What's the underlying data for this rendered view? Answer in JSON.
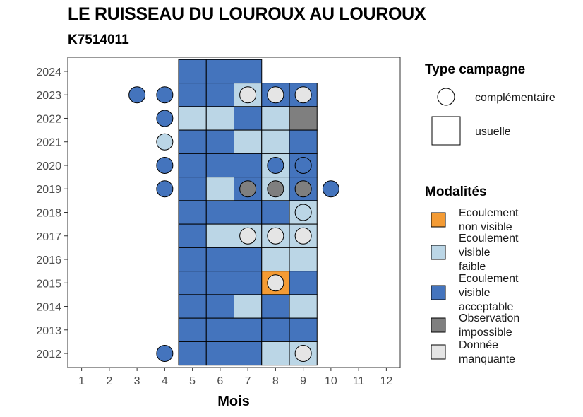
{
  "title": "LE RUISSEAU DU LOUROUX AU LOUROUX",
  "subtitle": "K7514011",
  "chart_data": {
    "type": "heatmap",
    "xlabel": "Mois",
    "ylabel": "",
    "x_ticks": [
      "1",
      "2",
      "3",
      "4",
      "5",
      "6",
      "7",
      "8",
      "9",
      "10",
      "11",
      "12"
    ],
    "y_ticks": [
      "2012",
      "2013",
      "2014",
      "2015",
      "2016",
      "2017",
      "2018",
      "2019",
      "2020",
      "2021",
      "2022",
      "2023",
      "2024"
    ],
    "xlim": [
      0.5,
      12.5
    ],
    "ylim": [
      2011.4,
      2024.6
    ],
    "grid": false,
    "legend_position": "right",
    "modalites": [
      {
        "key": "env",
        "label_lines": [
          "Ecoulement",
          "non visible"
        ],
        "color": "#F49B34"
      },
      {
        "key": "evf",
        "label_lines": [
          "Ecoulement",
          "visible",
          "faible"
        ],
        "color": "#BBD6E6"
      },
      {
        "key": "eva",
        "label_lines": [
          "Ecoulement",
          "visible",
          "acceptable"
        ],
        "color": "#4474BD"
      },
      {
        "key": "obs",
        "label_lines": [
          "Observation",
          "impossible"
        ],
        "color": "#7F7F7F"
      },
      {
        "key": "nd",
        "label_lines": [
          "Donnée",
          "manquante"
        ],
        "color": "#E5E5E5"
      }
    ],
    "type_campagne": {
      "title": "Type campagne",
      "entries": [
        {
          "key": "complementaire",
          "label": "complémentaire",
          "shape": "circle"
        },
        {
          "key": "usuelle",
          "label": "usuelle",
          "shape": "square"
        }
      ]
    },
    "modalites_title": "Modalités",
    "usuelle": [
      {
        "year": 2024,
        "month": 5,
        "v": "eva"
      },
      {
        "year": 2024,
        "month": 6,
        "v": "eva"
      },
      {
        "year": 2024,
        "month": 7,
        "v": "eva"
      },
      {
        "year": 2023,
        "month": 5,
        "v": "eva"
      },
      {
        "year": 2023,
        "month": 6,
        "v": "eva"
      },
      {
        "year": 2023,
        "month": 7,
        "v": "evf"
      },
      {
        "year": 2023,
        "month": 8,
        "v": "eva"
      },
      {
        "year": 2023,
        "month": 9,
        "v": "eva"
      },
      {
        "year": 2022,
        "month": 5,
        "v": "evf"
      },
      {
        "year": 2022,
        "month": 6,
        "v": "evf"
      },
      {
        "year": 2022,
        "month": 7,
        "v": "eva"
      },
      {
        "year": 2022,
        "month": 8,
        "v": "evf"
      },
      {
        "year": 2022,
        "month": 9,
        "v": "obs"
      },
      {
        "year": 2021,
        "month": 5,
        "v": "eva"
      },
      {
        "year": 2021,
        "month": 6,
        "v": "eva"
      },
      {
        "year": 2021,
        "month": 7,
        "v": "evf"
      },
      {
        "year": 2021,
        "month": 8,
        "v": "evf"
      },
      {
        "year": 2021,
        "month": 9,
        "v": "eva"
      },
      {
        "year": 2020,
        "month": 5,
        "v": "eva"
      },
      {
        "year": 2020,
        "month": 6,
        "v": "eva"
      },
      {
        "year": 2020,
        "month": 7,
        "v": "eva"
      },
      {
        "year": 2020,
        "month": 8,
        "v": "evf"
      },
      {
        "year": 2020,
        "month": 9,
        "v": "eva"
      },
      {
        "year": 2019,
        "month": 5,
        "v": "eva"
      },
      {
        "year": 2019,
        "month": 6,
        "v": "evf"
      },
      {
        "year": 2019,
        "month": 7,
        "v": "eva"
      },
      {
        "year": 2019,
        "month": 8,
        "v": "evf"
      },
      {
        "year": 2019,
        "month": 9,
        "v": "eva"
      },
      {
        "year": 2018,
        "month": 5,
        "v": "eva"
      },
      {
        "year": 2018,
        "month": 6,
        "v": "eva"
      },
      {
        "year": 2018,
        "month": 7,
        "v": "eva"
      },
      {
        "year": 2018,
        "month": 8,
        "v": "eva"
      },
      {
        "year": 2018,
        "month": 9,
        "v": "evf"
      },
      {
        "year": 2017,
        "month": 5,
        "v": "eva"
      },
      {
        "year": 2017,
        "month": 6,
        "v": "evf"
      },
      {
        "year": 2017,
        "month": 7,
        "v": "evf"
      },
      {
        "year": 2017,
        "month": 8,
        "v": "evf"
      },
      {
        "year": 2017,
        "month": 9,
        "v": "evf"
      },
      {
        "year": 2016,
        "month": 5,
        "v": "eva"
      },
      {
        "year": 2016,
        "month": 6,
        "v": "eva"
      },
      {
        "year": 2016,
        "month": 7,
        "v": "eva"
      },
      {
        "year": 2016,
        "month": 8,
        "v": "evf"
      },
      {
        "year": 2016,
        "month": 9,
        "v": "evf"
      },
      {
        "year": 2015,
        "month": 5,
        "v": "eva"
      },
      {
        "year": 2015,
        "month": 6,
        "v": "eva"
      },
      {
        "year": 2015,
        "month": 7,
        "v": "eva"
      },
      {
        "year": 2015,
        "month": 8,
        "v": "env"
      },
      {
        "year": 2015,
        "month": 9,
        "v": "eva"
      },
      {
        "year": 2014,
        "month": 5,
        "v": "eva"
      },
      {
        "year": 2014,
        "month": 6,
        "v": "eva"
      },
      {
        "year": 2014,
        "month": 7,
        "v": "evf"
      },
      {
        "year": 2014,
        "month": 8,
        "v": "eva"
      },
      {
        "year": 2014,
        "month": 9,
        "v": "evf"
      },
      {
        "year": 2013,
        "month": 5,
        "v": "eva"
      },
      {
        "year": 2013,
        "month": 6,
        "v": "eva"
      },
      {
        "year": 2013,
        "month": 7,
        "v": "eva"
      },
      {
        "year": 2013,
        "month": 8,
        "v": "eva"
      },
      {
        "year": 2013,
        "month": 9,
        "v": "eva"
      },
      {
        "year": 2012,
        "month": 5,
        "v": "eva"
      },
      {
        "year": 2012,
        "month": 6,
        "v": "eva"
      },
      {
        "year": 2012,
        "month": 7,
        "v": "eva"
      },
      {
        "year": 2012,
        "month": 8,
        "v": "evf"
      },
      {
        "year": 2012,
        "month": 9,
        "v": "evf"
      }
    ],
    "complementaire": [
      {
        "year": 2023,
        "month": 3,
        "v": "eva"
      },
      {
        "year": 2023,
        "month": 4,
        "v": "eva"
      },
      {
        "year": 2023,
        "month": 7,
        "v": "nd"
      },
      {
        "year": 2023,
        "month": 8,
        "v": "nd"
      },
      {
        "year": 2023,
        "month": 9,
        "v": "nd"
      },
      {
        "year": 2022,
        "month": 4,
        "v": "eva"
      },
      {
        "year": 2021,
        "month": 4,
        "v": "evf"
      },
      {
        "year": 2020,
        "month": 4,
        "v": "eva"
      },
      {
        "year": 2020,
        "month": 8,
        "v": "eva"
      },
      {
        "year": 2020,
        "month": 9,
        "v": "eva"
      },
      {
        "year": 2019,
        "month": 4,
        "v": "eva"
      },
      {
        "year": 2019,
        "month": 7,
        "v": "obs"
      },
      {
        "year": 2019,
        "month": 8,
        "v": "obs"
      },
      {
        "year": 2019,
        "month": 9,
        "v": "obs"
      },
      {
        "year": 2019,
        "month": 10,
        "v": "eva"
      },
      {
        "year": 2018,
        "month": 9,
        "v": "evf"
      },
      {
        "year": 2017,
        "month": 7,
        "v": "nd"
      },
      {
        "year": 2017,
        "month": 8,
        "v": "nd"
      },
      {
        "year": 2017,
        "month": 9,
        "v": "nd"
      },
      {
        "year": 2015,
        "month": 8,
        "v": "nd"
      },
      {
        "year": 2012,
        "month": 4,
        "v": "eva"
      },
      {
        "year": 2012,
        "month": 9,
        "v": "nd"
      }
    ]
  }
}
